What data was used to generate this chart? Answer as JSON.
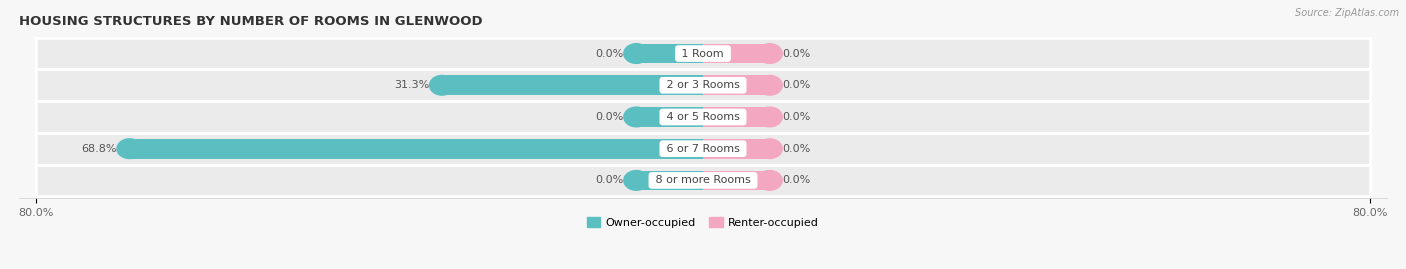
{
  "title": "HOUSING STRUCTURES BY NUMBER OF ROOMS IN GLENWOOD",
  "source": "Source: ZipAtlas.com",
  "categories": [
    "1 Room",
    "2 or 3 Rooms",
    "4 or 5 Rooms",
    "6 or 7 Rooms",
    "8 or more Rooms"
  ],
  "owner_values": [
    0.0,
    31.3,
    0.0,
    68.8,
    0.0
  ],
  "renter_values": [
    0.0,
    0.0,
    0.0,
    0.0,
    0.0
  ],
  "owner_color": "#5bbfc2",
  "renter_color": "#f4a7c0",
  "row_bg_color": "#ebebeb",
  "fig_bg_color": "#f7f7f7",
  "x_min": -80.0,
  "x_max": 80.0,
  "title_fontsize": 9.5,
  "source_fontsize": 7,
  "label_fontsize": 8,
  "category_fontsize": 8,
  "legend_fontsize": 8,
  "figsize": [
    14.06,
    2.69
  ],
  "dpi": 100,
  "min_bar_width": 8.0
}
